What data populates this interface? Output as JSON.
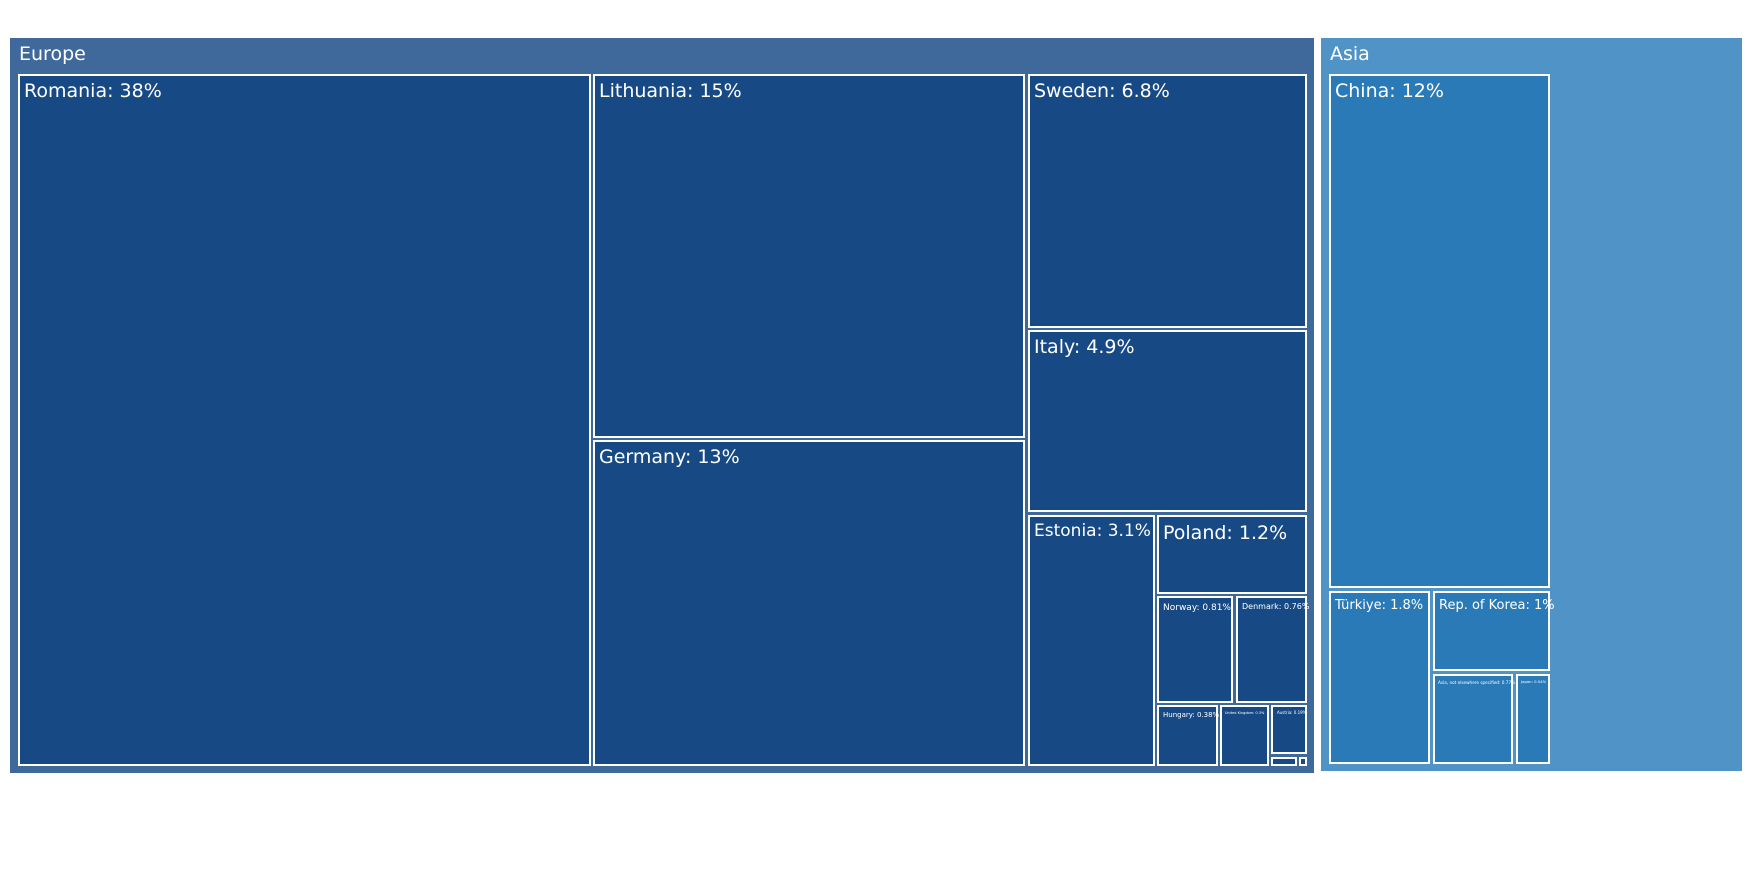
{
  "chart_data": {
    "type": "treemap",
    "colors": {
      "europe_header": "#40699b",
      "europe_leaf": "#174a84",
      "asia_header": "#5093c6",
      "asia_leaf": "#2a7ab8",
      "border": "#ffffff"
    },
    "groups": [
      {
        "name": "Europe",
        "items": [
          {
            "label": "Romania: 38%"
          },
          {
            "label": "Lithuania: 15%"
          },
          {
            "label": "Germany: 13%"
          },
          {
            "label": "Sweden: 6.8%"
          },
          {
            "label": "Italy: 4.9%"
          },
          {
            "label": "Estonia: 3.1%"
          },
          {
            "label": "Poland: 1.2%"
          },
          {
            "label": "Norway: 0.81%"
          },
          {
            "label": "Denmark: 0.76%"
          },
          {
            "label": "Hungary: 0.38%"
          },
          {
            "label": "United Kingdom: 0.3%"
          },
          {
            "label": "Austria: 0.19%"
          },
          {
            "label": ""
          },
          {
            "label": ""
          }
        ]
      },
      {
        "name": "Asia",
        "items": [
          {
            "label": "China: 12%"
          },
          {
            "label": "Türkiye: 1.8%"
          },
          {
            "label": "Rep. of Korea: 1%"
          },
          {
            "label": "Asia, not elsewhere specified: 0.77%"
          },
          {
            "label": "Japan: 0.54%"
          }
        ]
      }
    ]
  }
}
